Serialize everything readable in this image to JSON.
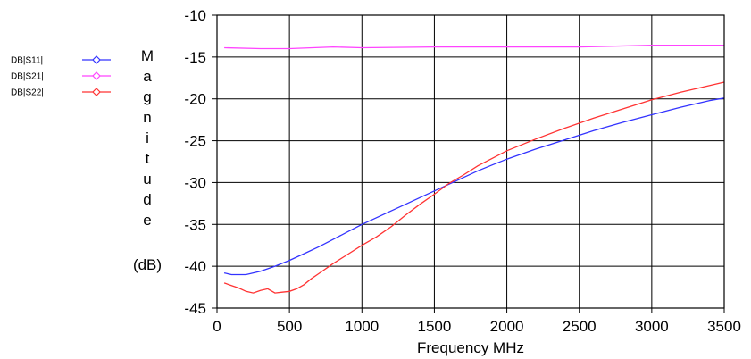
{
  "chart_data": {
    "type": "line",
    "xlabel": "Frequency MHz",
    "ylabel_letters": [
      "M",
      "a",
      "g",
      "n",
      "i",
      "t",
      "u",
      "d",
      "e"
    ],
    "ylabel_unit": "(dB)",
    "xlim": [
      0,
      3500
    ],
    "ylim": [
      -45,
      -10
    ],
    "x_ticks": [
      0,
      500,
      1000,
      1500,
      2000,
      2500,
      3000,
      3500
    ],
    "y_ticks": [
      -10,
      -15,
      -20,
      -25,
      -30,
      -35,
      -40,
      -45
    ],
    "grid": true,
    "legend_position": "left",
    "series": [
      {
        "name": "DB|S11|",
        "color": "#3333ff",
        "points": [
          [
            50,
            -40.8
          ],
          [
            100,
            -41.0
          ],
          [
            200,
            -41.0
          ],
          [
            300,
            -40.6
          ],
          [
            400,
            -40.0
          ],
          [
            500,
            -39.3
          ],
          [
            600,
            -38.5
          ],
          [
            700,
            -37.7
          ],
          [
            800,
            -36.8
          ],
          [
            900,
            -35.9
          ],
          [
            1000,
            -35.0
          ],
          [
            1100,
            -34.2
          ],
          [
            1200,
            -33.4
          ],
          [
            1300,
            -32.6
          ],
          [
            1400,
            -31.8
          ],
          [
            1500,
            -31.0
          ],
          [
            1600,
            -30.2
          ],
          [
            1700,
            -29.4
          ],
          [
            1800,
            -28.6
          ],
          [
            1900,
            -27.9
          ],
          [
            2000,
            -27.2
          ],
          [
            2200,
            -26.0
          ],
          [
            2400,
            -24.9
          ],
          [
            2600,
            -23.8
          ],
          [
            2800,
            -22.8
          ],
          [
            3000,
            -21.9
          ],
          [
            3200,
            -21.0
          ],
          [
            3400,
            -20.2
          ],
          [
            3500,
            -19.9
          ]
        ]
      },
      {
        "name": "DB|S21|",
        "color": "#ff44ff",
        "points": [
          [
            50,
            -13.9
          ],
          [
            300,
            -14.0
          ],
          [
            500,
            -14.0
          ],
          [
            800,
            -13.8
          ],
          [
            1000,
            -13.9
          ],
          [
            1500,
            -13.8
          ],
          [
            2000,
            -13.8
          ],
          [
            2500,
            -13.8
          ],
          [
            3000,
            -13.6
          ],
          [
            3500,
            -13.6
          ]
        ]
      },
      {
        "name": "DB|S22|",
        "color": "#ff3333",
        "points": [
          [
            50,
            -42.0
          ],
          [
            100,
            -42.3
          ],
          [
            150,
            -42.6
          ],
          [
            200,
            -43.0
          ],
          [
            250,
            -43.2
          ],
          [
            300,
            -42.9
          ],
          [
            350,
            -42.7
          ],
          [
            400,
            -43.2
          ],
          [
            450,
            -43.1
          ],
          [
            500,
            -43.0
          ],
          [
            550,
            -42.7
          ],
          [
            600,
            -42.2
          ],
          [
            650,
            -41.5
          ],
          [
            700,
            -40.9
          ],
          [
            800,
            -39.7
          ],
          [
            900,
            -38.6
          ],
          [
            1000,
            -37.5
          ],
          [
            1100,
            -36.5
          ],
          [
            1200,
            -35.3
          ],
          [
            1300,
            -33.9
          ],
          [
            1400,
            -32.6
          ],
          [
            1500,
            -31.4
          ],
          [
            1600,
            -30.1
          ],
          [
            1700,
            -29.1
          ],
          [
            1800,
            -28.0
          ],
          [
            1900,
            -27.1
          ],
          [
            2000,
            -26.2
          ],
          [
            2200,
            -24.8
          ],
          [
            2400,
            -23.5
          ],
          [
            2600,
            -22.3
          ],
          [
            2800,
            -21.2
          ],
          [
            3000,
            -20.1
          ],
          [
            3200,
            -19.2
          ],
          [
            3400,
            -18.4
          ],
          [
            3500,
            -18.0
          ]
        ]
      }
    ]
  }
}
